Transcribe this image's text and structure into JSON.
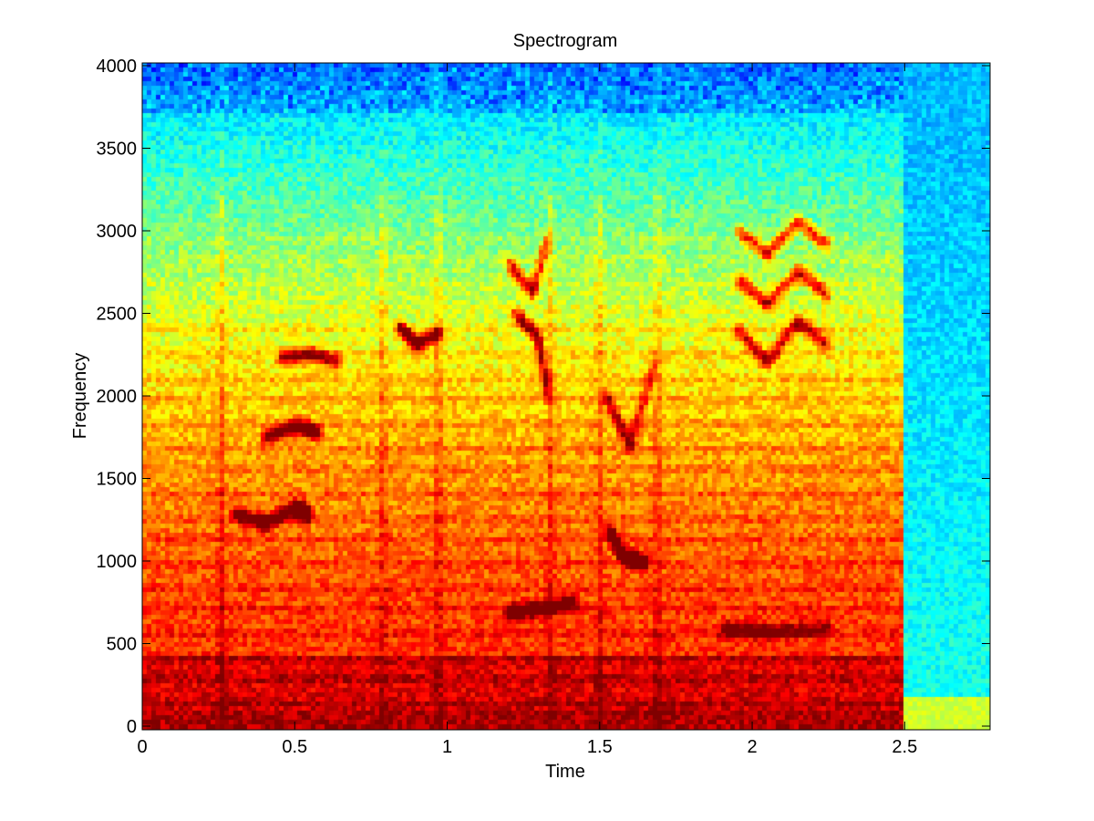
{
  "chart_data": {
    "type": "heatmap",
    "title": "Spectrogram",
    "xlabel": "Time",
    "ylabel": "Frequency",
    "xlim": [
      0,
      2.78
    ],
    "ylim": [
      0,
      4000
    ],
    "x_ticks": [
      0,
      0.5,
      1,
      1.5,
      2,
      2.5
    ],
    "x_tick_labels": [
      "0",
      "0.5",
      "1",
      "1.5",
      "2",
      "2.5"
    ],
    "y_ticks": [
      0,
      500,
      1000,
      1500,
      2000,
      2500,
      3000,
      3500,
      4000
    ],
    "y_tick_labels": [
      "0",
      "500",
      "1000",
      "1500",
      "2000",
      "2500",
      "3000",
      "3500",
      "4000"
    ],
    "grid": false,
    "colormap": "jet",
    "signal_end_time": 2.5,
    "colors": {
      "background": "#ffffff",
      "axes": "#000000"
    },
    "features": {
      "onsets": [
        0.26,
        0.79,
        0.97,
        1.34,
        1.5,
        1.69,
        2.5
      ],
      "harmonic_tracks": [
        {
          "t": [
            0.3,
            0.4,
            0.5,
            0.55
          ],
          "f": [
            1300,
            1230,
            1330,
            1290
          ]
        },
        {
          "t": [
            0.4,
            0.5,
            0.58
          ],
          "f": [
            1750,
            1820,
            1780
          ]
        },
        {
          "t": [
            0.45,
            0.55,
            0.65
          ],
          "f": [
            2220,
            2250,
            2200
          ]
        },
        {
          "t": [
            0.84,
            0.9,
            0.98
          ],
          "f": [
            2420,
            2310,
            2380
          ]
        },
        {
          "t": [
            1.2,
            1.28,
            1.33
          ],
          "f": [
            2800,
            2620,
            2950
          ]
        },
        {
          "t": [
            1.22,
            1.3,
            1.33
          ],
          "f": [
            2500,
            2350,
            2000
          ]
        },
        {
          "t": [
            1.53,
            1.58,
            1.65
          ],
          "f": [
            1200,
            1030,
            1000
          ]
        },
        {
          "t": [
            1.52,
            1.6,
            1.68
          ],
          "f": [
            2000,
            1700,
            2200
          ]
        },
        {
          "t": [
            1.95,
            2.05,
            2.15,
            2.25
          ],
          "f": [
            2400,
            2200,
            2450,
            2300
          ]
        },
        {
          "t": [
            1.95,
            2.05,
            2.15,
            2.25
          ],
          "f": [
            2700,
            2550,
            2750,
            2600
          ]
        },
        {
          "t": [
            1.95,
            2.05,
            2.15,
            2.25
          ],
          "f": [
            3000,
            2850,
            3050,
            2900
          ]
        },
        {
          "t": [
            1.9,
            2.05,
            2.25
          ],
          "f": [
            600,
            580,
            610
          ]
        },
        {
          "t": [
            1.2,
            1.3,
            1.42
          ],
          "f": [
            700,
            720,
            760
          ]
        }
      ]
    }
  }
}
